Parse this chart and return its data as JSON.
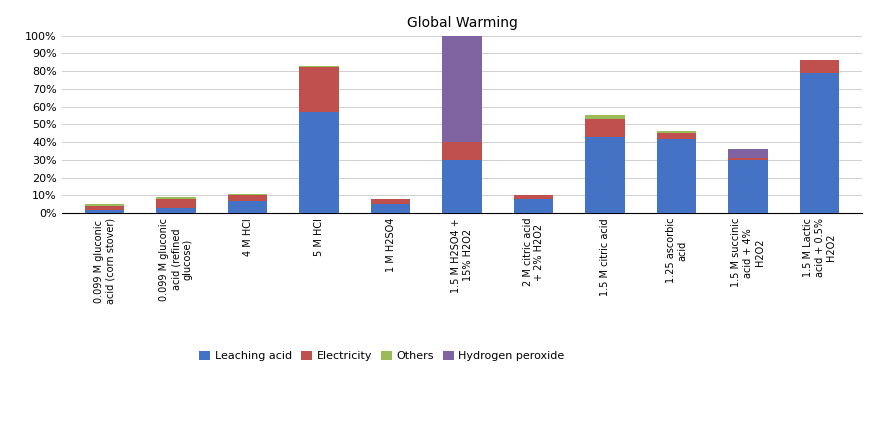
{
  "categories": [
    "0.099 M gluconic\nacid (corn stover)",
    "0.099 M gluconic\nacid (refined\nglucose)",
    "4 M HCl",
    "5 M HCl",
    "1 M H2SO4",
    "1.5 M H2SO4 +\n15% H2O2",
    "2 M citric acid\n+ 2% H2O2",
    "1.5 M citric acid",
    "1.25 ascorbic\nacid",
    "1.5 M succinic\nacid + 4%\nH2O2",
    "1.5 M Lactic\nacid + 0.5%\nH2O2"
  ],
  "leaching_acid": [
    2.0,
    3.0,
    7.0,
    57.0,
    5.0,
    30.0,
    8.0,
    43.0,
    42.0,
    30.0,
    79.0
  ],
  "electricity": [
    2.0,
    5.0,
    3.0,
    25.0,
    3.0,
    10.0,
    2.0,
    10.0,
    3.0,
    1.0,
    7.0
  ],
  "others": [
    1.0,
    1.0,
    1.0,
    1.0,
    0.0,
    0.0,
    0.0,
    2.0,
    1.0,
    0.0,
    0.0
  ],
  "hydrogen_peroxide": [
    0.0,
    0.0,
    0.0,
    0.0,
    0.0,
    60.0,
    0.0,
    0.0,
    0.0,
    5.0,
    0.0
  ],
  "color_leaching_acid": "#4472C4",
  "color_electricity": "#C0504D",
  "color_others": "#9BBB59",
  "color_hydrogen_peroxide": "#8064A2",
  "title": "Global Warming",
  "ylim": [
    0,
    100
  ],
  "yticks": [
    0,
    10,
    20,
    30,
    40,
    50,
    60,
    70,
    80,
    90,
    100
  ],
  "ytick_labels": [
    "0%",
    "10%",
    "20%",
    "30%",
    "40%",
    "50%",
    "60%",
    "70%",
    "80%",
    "90%",
    "100%"
  ],
  "background_color": "#FFFFFF",
  "grid_color": "#D0D0D0"
}
